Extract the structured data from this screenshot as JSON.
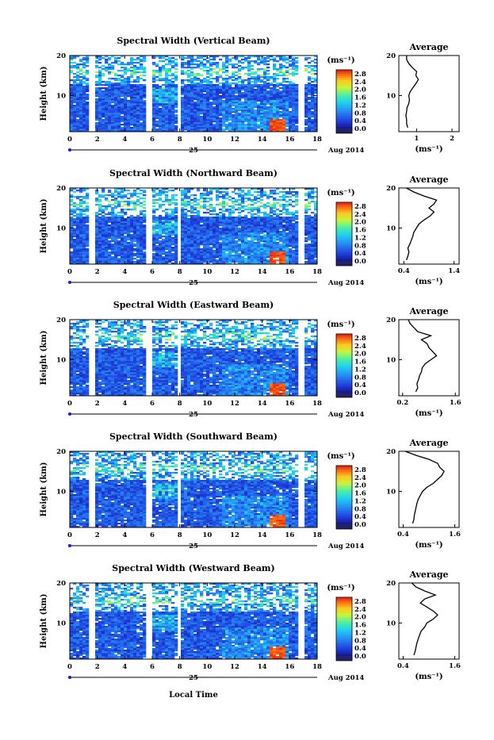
{
  "figure": {
    "x_axis_title": "Local Time",
    "date_label": "Aug 2014",
    "day_label": "25",
    "y_axis_title": "Height (km)",
    "colorbar_unit": "(ms⁻¹)",
    "average_title": "Average",
    "average_unit": "(ms⁻¹)"
  },
  "chart_data": [
    {
      "type": "heatmap",
      "title": "Spectral Width (Vertical Beam)",
      "ylabel": "Height (km)",
      "x_ticks": [
        "0",
        "2",
        "4",
        "6",
        "8",
        "10",
        "12",
        "14",
        "16",
        "18"
      ],
      "y_ticks": [
        "10",
        "20"
      ],
      "xlim": [
        0,
        18
      ],
      "ylim": [
        1,
        20
      ],
      "colorbar": {
        "unit": "(ms⁻¹)",
        "ticks": [
          "0.0",
          "0.4",
          "0.8",
          "1.2",
          "1.6",
          "2.0",
          "2.4",
          "2.8"
        ],
        "range": [
          0,
          3.0
        ]
      },
      "profile": {
        "title": "Average",
        "xlabel": "(ms⁻¹)",
        "x_ticks": [
          "1",
          "2"
        ],
        "y_ticks": [
          "10",
          "20"
        ],
        "xlim": [
          0.5,
          2.2
        ],
        "heights": [
          2,
          3,
          4,
          5,
          6,
          7,
          8,
          9,
          10,
          11,
          12,
          13,
          14,
          15,
          16,
          17,
          18,
          19,
          20
        ],
        "values": [
          0.75,
          0.72,
          0.72,
          0.7,
          0.72,
          0.73,
          0.78,
          0.8,
          0.78,
          0.82,
          0.9,
          0.98,
          1.05,
          0.98,
          1.0,
          0.88,
          0.78,
          0.72,
          0.72
        ]
      }
    },
    {
      "type": "heatmap",
      "title": "Spectral Width (Northward Beam)",
      "ylabel": "Height (km)",
      "x_ticks": [
        "0",
        "2",
        "4",
        "6",
        "8",
        "10",
        "12",
        "14",
        "16",
        "18"
      ],
      "y_ticks": [
        "10",
        "20"
      ],
      "xlim": [
        0,
        18
      ],
      "ylim": [
        1,
        20
      ],
      "colorbar": {
        "unit": "(ms⁻¹)",
        "ticks": [
          "0.0",
          "0.4",
          "0.8",
          "1.2",
          "1.6",
          "2.0",
          "2.4",
          "2.8"
        ],
        "range": [
          0,
          3.0
        ]
      },
      "profile": {
        "title": "Average",
        "xlabel": "(ms⁻¹)",
        "x_ticks": [
          "0.4",
          "1.4"
        ],
        "y_ticks": [
          "10",
          "20"
        ],
        "xlim": [
          0.3,
          1.5
        ],
        "heights": [
          2,
          3,
          4,
          5,
          6,
          7,
          8,
          9,
          10,
          11,
          12,
          13,
          14,
          15,
          16,
          17,
          18,
          19,
          20
        ],
        "values": [
          0.45,
          0.48,
          0.5,
          0.48,
          0.52,
          0.55,
          0.58,
          0.6,
          0.65,
          0.7,
          0.8,
          0.92,
          1.0,
          0.9,
          1.0,
          1.05,
          0.8,
          0.6,
          0.45
        ]
      }
    },
    {
      "type": "heatmap",
      "title": "Spectral Width (Eastward Beam)",
      "ylabel": "Height (km)",
      "x_ticks": [
        "0",
        "2",
        "4",
        "6",
        "8",
        "10",
        "12",
        "14",
        "16",
        "18"
      ],
      "y_ticks": [
        "10",
        "20"
      ],
      "xlim": [
        0,
        18
      ],
      "ylim": [
        1,
        20
      ],
      "colorbar": {
        "unit": "(ms⁻¹)",
        "ticks": [
          "0.0",
          "0.4",
          "0.8",
          "1.2",
          "1.6",
          "2.0",
          "2.4",
          "2.8"
        ],
        "range": [
          0,
          3.0
        ]
      },
      "profile": {
        "title": "Average",
        "xlabel": "(ms⁻¹)",
        "x_ticks": [
          "0.2",
          "1.6"
        ],
        "y_ticks": [
          "10",
          "20"
        ],
        "xlim": [
          0.1,
          1.7
        ],
        "heights": [
          2,
          3,
          4,
          5,
          6,
          7,
          8,
          9,
          10,
          11,
          12,
          13,
          14,
          15,
          16,
          17,
          18,
          19,
          20
        ],
        "values": [
          0.55,
          0.6,
          0.58,
          0.62,
          0.65,
          0.7,
          0.72,
          0.8,
          0.95,
          1.1,
          1.0,
          0.9,
          0.85,
          0.7,
          0.95,
          0.6,
          0.5,
          0.4,
          0.35
        ]
      }
    },
    {
      "type": "heatmap",
      "title": "Spectral Width (Southward Beam)",
      "ylabel": "Height (km)",
      "x_ticks": [
        "0",
        "2",
        "4",
        "6",
        "8",
        "10",
        "12",
        "14",
        "16",
        "18"
      ],
      "y_ticks": [
        "10",
        "20"
      ],
      "xlim": [
        0,
        18
      ],
      "ylim": [
        1,
        20
      ],
      "colorbar": {
        "unit": "(ms⁻¹)",
        "ticks": [
          "0.0",
          "0.4",
          "0.8",
          "1.2",
          "1.6",
          "2.0",
          "2.4",
          "2.8"
        ],
        "range": [
          0,
          3.0
        ]
      },
      "profile": {
        "title": "Average",
        "xlabel": "(ms⁻¹)",
        "x_ticks": [
          "0.4",
          "1.6"
        ],
        "y_ticks": [
          "10",
          "20"
        ],
        "xlim": [
          0.3,
          1.7
        ],
        "heights": [
          2,
          3,
          4,
          5,
          6,
          7,
          8,
          9,
          10,
          11,
          12,
          13,
          14,
          15,
          16,
          17,
          18,
          19,
          20
        ],
        "values": [
          0.62,
          0.65,
          0.66,
          0.68,
          0.7,
          0.72,
          0.75,
          0.8,
          0.85,
          0.95,
          1.1,
          1.2,
          1.3,
          1.35,
          1.25,
          1.2,
          1.0,
          0.7,
          0.45
        ]
      }
    },
    {
      "type": "heatmap",
      "title": "Spectral Width (Westward Beam)",
      "ylabel": "Height (km)",
      "xlabel": "Local Time",
      "x_ticks": [
        "0",
        "2",
        "4",
        "6",
        "8",
        "10",
        "12",
        "14",
        "16",
        "18"
      ],
      "y_ticks": [
        "10",
        "20"
      ],
      "xlim": [
        0,
        18
      ],
      "ylim": [
        1,
        20
      ],
      "colorbar": {
        "unit": "(ms⁻¹)",
        "ticks": [
          "0.0",
          "0.4",
          "0.8",
          "1.2",
          "1.6",
          "2.0",
          "2.4",
          "2.8"
        ],
        "range": [
          0,
          3.0
        ]
      },
      "profile": {
        "title": "Average",
        "xlabel": "(ms⁻¹)",
        "x_ticks": [
          "0.4",
          "1.6"
        ],
        "y_ticks": [
          "10",
          "20"
        ],
        "xlim": [
          0.3,
          1.7
        ],
        "heights": [
          2,
          3,
          4,
          5,
          6,
          7,
          8,
          9,
          10,
          11,
          12,
          13,
          14,
          15,
          16,
          17,
          18,
          19,
          20
        ],
        "values": [
          0.65,
          0.68,
          0.7,
          0.72,
          0.75,
          0.78,
          0.82,
          0.9,
          0.95,
          1.1,
          1.2,
          1.1,
          0.95,
          0.8,
          0.9,
          1.15,
          0.9,
          0.7,
          0.6
        ]
      }
    }
  ]
}
